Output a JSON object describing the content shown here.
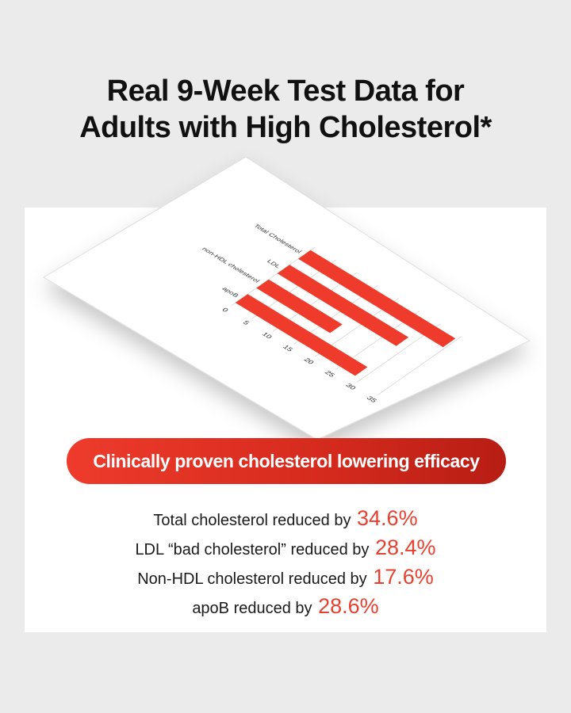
{
  "headline": {
    "line1": "Real 9-Week Test Data for",
    "line2": "Adults with High Cholesterol*"
  },
  "chart_data": {
    "type": "bar",
    "orientation": "horizontal",
    "categories": [
      "Total Cholesterol",
      "LDL",
      "non-HDL cholesterol",
      "apoB"
    ],
    "values": [
      34.6,
      28.4,
      17.6,
      28.6
    ],
    "x_ticks": [
      "0",
      "5",
      "10",
      "15",
      "20",
      "25",
      "30",
      "35"
    ],
    "xlim": [
      0,
      35
    ],
    "bar_color": "#ee3b2c"
  },
  "badge": {
    "label": "Clinically proven cholesterol lowering efficacy"
  },
  "stats": [
    {
      "label": "Total cholesterol reduced by",
      "value": "34.6%"
    },
    {
      "label": "LDL “bad cholesterol” reduced by",
      "value": "28.4%"
    },
    {
      "label": "Non-HDL cholesterol reduced by",
      "value": "17.6%"
    },
    {
      "label": "apoB reduced by",
      "value": "28.6%"
    }
  ],
  "colors": {
    "accent": "#e8402f",
    "background": "#ebebeb",
    "card": "#ffffff"
  }
}
